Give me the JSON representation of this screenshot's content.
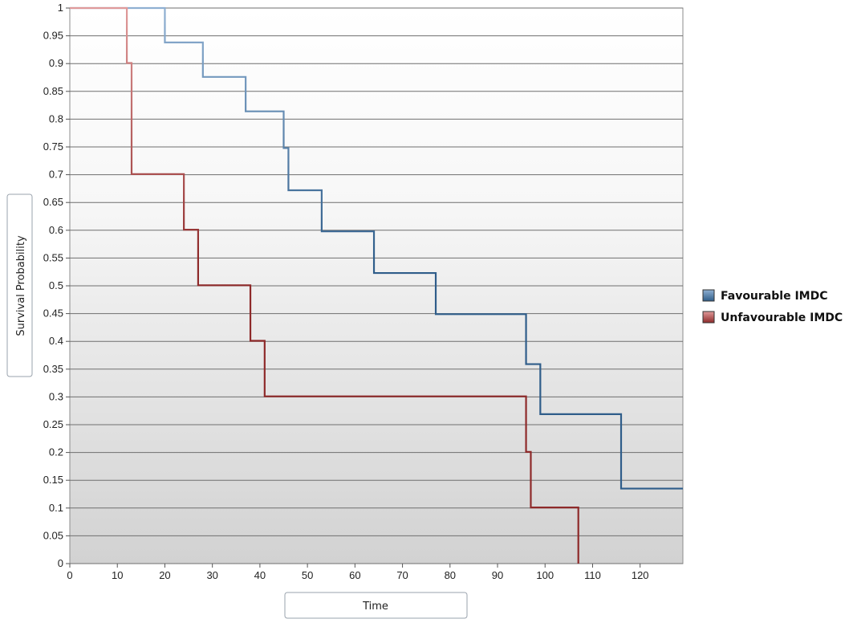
{
  "chart_data": {
    "type": "line",
    "step": true,
    "xlabel": "Time",
    "ylabel": "Survival Probability",
    "xlim": [
      0,
      129
    ],
    "ylim": [
      0,
      1
    ],
    "xticks": [
      0,
      10,
      20,
      30,
      40,
      50,
      60,
      70,
      80,
      90,
      100,
      110,
      120
    ],
    "yticks": [
      0,
      0.05,
      0.1,
      0.15,
      0.2,
      0.25,
      0.3,
      0.35,
      0.4,
      0.45,
      0.5,
      0.55,
      0.6,
      0.65,
      0.7,
      0.75,
      0.8,
      0.85,
      0.9,
      0.95,
      1
    ],
    "ytick_labels": [
      "0",
      "0.05",
      "0.1",
      "0.15",
      "0.2",
      "0.25",
      "0.3",
      "0.35",
      "0.4",
      "0.45",
      "0.5",
      "0.55",
      "0.6",
      "0.65",
      "0.7",
      "0.75",
      "0.8",
      "0.85",
      "0.9",
      "0.95",
      "1"
    ],
    "grid": "horizontal",
    "legend_position": "right",
    "series": [
      {
        "name": "Favourable IMDC",
        "color": "#2f5d8a",
        "color_light": "#8fb0d2",
        "points": [
          [
            0,
            1
          ],
          [
            20,
            1
          ],
          [
            20,
            0.938
          ],
          [
            28,
            0.938
          ],
          [
            28,
            0.876
          ],
          [
            37,
            0.876
          ],
          [
            37,
            0.814
          ],
          [
            45,
            0.814
          ],
          [
            45,
            0.748
          ],
          [
            46,
            0.748
          ],
          [
            46,
            0.672
          ],
          [
            53,
            0.672
          ],
          [
            53,
            0.598
          ],
          [
            64,
            0.598
          ],
          [
            64,
            0.523
          ],
          [
            77,
            0.523
          ],
          [
            77,
            0.449
          ],
          [
            96,
            0.449
          ],
          [
            96,
            0.359
          ],
          [
            99,
            0.359
          ],
          [
            99,
            0.269
          ],
          [
            116,
            0.269
          ],
          [
            116,
            0.135
          ],
          [
            129,
            0.135
          ]
        ]
      },
      {
        "name": "Unfavourable IMDC",
        "color": "#8e2a2a",
        "color_light": "#e09a9a",
        "points": [
          [
            0,
            1
          ],
          [
            12,
            1
          ],
          [
            12,
            0.901
          ],
          [
            13,
            0.901
          ],
          [
            13,
            0.701
          ],
          [
            24,
            0.701
          ],
          [
            24,
            0.601
          ],
          [
            27,
            0.601
          ],
          [
            27,
            0.501
          ],
          [
            38,
            0.501
          ],
          [
            38,
            0.401
          ],
          [
            41,
            0.401
          ],
          [
            41,
            0.301
          ],
          [
            96,
            0.301
          ],
          [
            96,
            0.201
          ],
          [
            97,
            0.201
          ],
          [
            97,
            0.101
          ],
          [
            107,
            0.101
          ],
          [
            107,
            0
          ]
        ]
      }
    ]
  }
}
